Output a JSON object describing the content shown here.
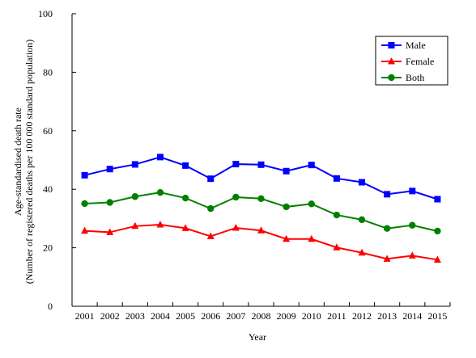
{
  "chart_data": {
    "type": "line",
    "title": "",
    "xlabel": "Year",
    "ylabel_line1": "Age-standardised death rate",
    "ylabel_line2": "(Number of registered deaths per 100 000 standard population)",
    "ylim": [
      0,
      100
    ],
    "yticks": [
      0,
      20,
      40,
      60,
      80,
      100
    ],
    "categories": [
      "2001",
      "2002",
      "2003",
      "2004",
      "2005",
      "2006",
      "2007",
      "2008",
      "2009",
      "2010",
      "2011",
      "2012",
      "2013",
      "2014",
      "2015"
    ],
    "grid": false,
    "legend_position": "top-right",
    "series": [
      {
        "name": "Male",
        "color": "#0000ff",
        "marker": "square",
        "values": [
          44.8,
          46.9,
          48.5,
          51.0,
          48.1,
          43.6,
          48.6,
          48.4,
          46.2,
          48.3,
          43.7,
          42.4,
          38.3,
          39.4,
          36.6
        ]
      },
      {
        "name": "Female",
        "color": "#ff0000",
        "marker": "triangle",
        "values": [
          25.8,
          25.3,
          27.4,
          27.9,
          26.7,
          23.9,
          26.8,
          25.9,
          23.0,
          23.0,
          20.1,
          18.3,
          16.2,
          17.3,
          15.9
        ]
      },
      {
        "name": "Both",
        "color": "#008000",
        "marker": "circle",
        "values": [
          35.1,
          35.5,
          37.5,
          38.9,
          37.0,
          33.4,
          37.3,
          36.8,
          34.0,
          35.0,
          31.2,
          29.6,
          26.6,
          27.7,
          25.7
        ]
      }
    ]
  }
}
